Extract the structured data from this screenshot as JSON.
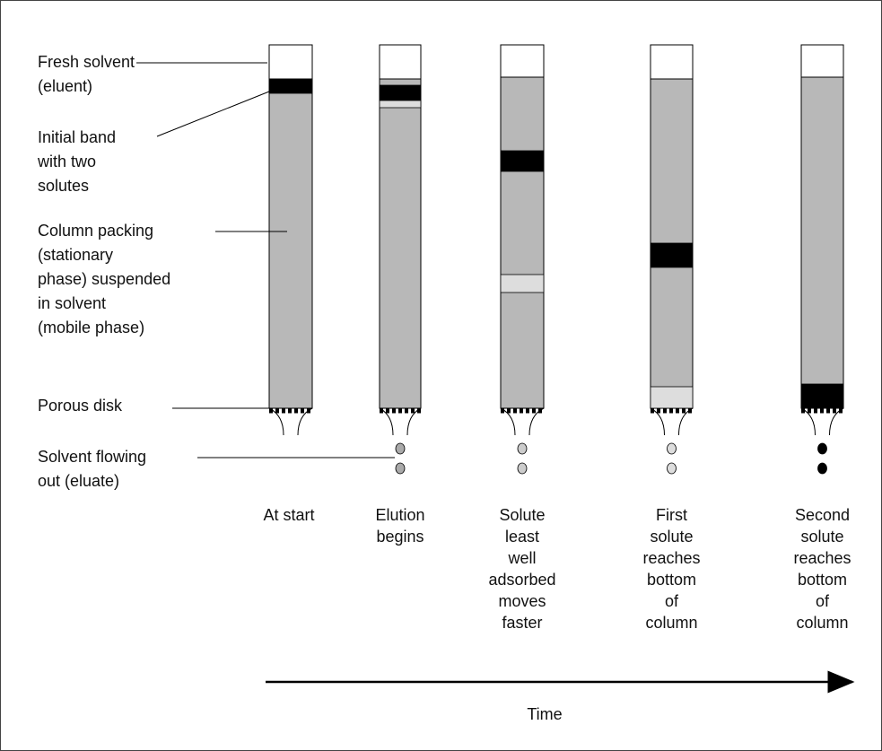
{
  "labels": [
    {
      "lines": [
        "Fresh solvent",
        "(eluent)"
      ]
    },
    {
      "lines": [
        "Initial band",
        "with two",
        "solutes"
      ]
    },
    {
      "lines": [
        "Column packing",
        "(stationary",
        "phase) suspended",
        "in solvent",
        "(mobile phase)"
      ]
    },
    {
      "lines": [
        "Porous disk"
      ]
    },
    {
      "lines": [
        "Solvent flowing",
        "out (eluate)"
      ]
    }
  ],
  "columns": [
    {
      "caption": [
        "At start"
      ]
    },
    {
      "caption": [
        "Elution",
        "begins"
      ]
    },
    {
      "caption": [
        "Solute",
        "least",
        "well",
        "adsorbed",
        "moves",
        "faster"
      ]
    },
    {
      "caption": [
        "First",
        "solute",
        "reaches",
        "bottom",
        "of",
        "column"
      ]
    },
    {
      "caption": [
        "Second",
        "solute",
        "reaches",
        "bottom",
        "of",
        "column"
      ]
    }
  ],
  "axis": {
    "label": "Time"
  }
}
